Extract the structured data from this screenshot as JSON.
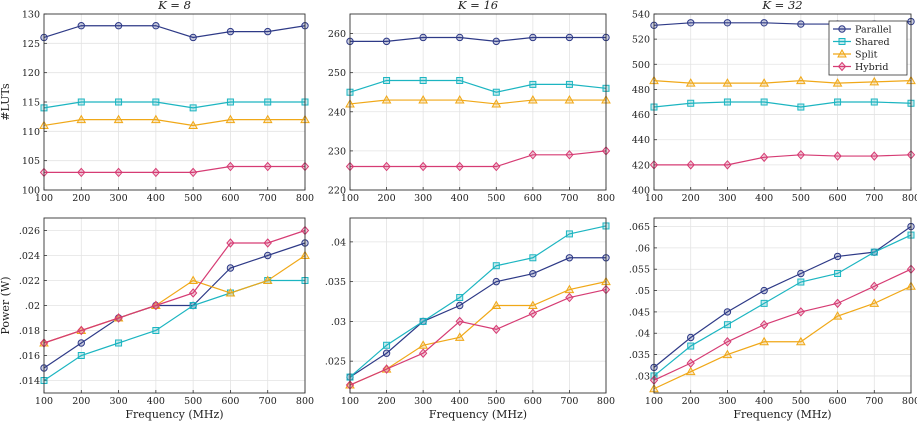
{
  "chart_data": [
    {
      "type": "line",
      "title": "K = 8",
      "xlabel": "",
      "ylabel": "#LUTs",
      "x": [
        100,
        200,
        300,
        400,
        500,
        600,
        700,
        800
      ],
      "xlim": [
        100,
        800
      ],
      "ylim": [
        100,
        130
      ],
      "yticks": [
        100,
        105,
        110,
        115,
        120,
        125,
        130
      ],
      "grid": true,
      "series": [
        {
          "name": "Parallel",
          "values": [
            126,
            128,
            128,
            128,
            126,
            127,
            127,
            128
          ]
        },
        {
          "name": "Shared",
          "values": [
            114,
            115,
            115,
            115,
            114,
            115,
            115,
            115
          ]
        },
        {
          "name": "Split",
          "values": [
            111,
            112,
            112,
            112,
            111,
            112,
            112,
            112
          ]
        },
        {
          "name": "Hybrid",
          "values": [
            103,
            103,
            103,
            103,
            103,
            104,
            104,
            104
          ]
        }
      ]
    },
    {
      "type": "line",
      "title": "K = 16",
      "xlabel": "",
      "ylabel": "",
      "x": [
        100,
        200,
        300,
        400,
        500,
        600,
        700,
        800
      ],
      "xlim": [
        100,
        800
      ],
      "ylim": [
        220,
        265
      ],
      "yticks": [
        220,
        230,
        240,
        250,
        260
      ],
      "grid": true,
      "series": [
        {
          "name": "Parallel",
          "values": [
            258,
            258,
            259,
            259,
            258,
            259,
            259,
            259
          ]
        },
        {
          "name": "Shared",
          "values": [
            245,
            248,
            248,
            248,
            245,
            247,
            247,
            246
          ]
        },
        {
          "name": "Split",
          "values": [
            242,
            243,
            243,
            243,
            242,
            243,
            243,
            243
          ]
        },
        {
          "name": "Hybrid",
          "values": [
            226,
            226,
            226,
            226,
            226,
            229,
            229,
            230
          ]
        }
      ]
    },
    {
      "type": "line",
      "title": "K = 32",
      "xlabel": "",
      "ylabel": "",
      "x": [
        100,
        200,
        300,
        400,
        500,
        600,
        700,
        800
      ],
      "xlim": [
        100,
        800
      ],
      "ylim": [
        400,
        540
      ],
      "yticks": [
        400,
        420,
        440,
        460,
        480,
        500,
        520,
        540
      ],
      "grid": true,
      "legend": "top-right",
      "series": [
        {
          "name": "Parallel",
          "values": [
            531,
            533,
            533,
            533,
            532,
            532,
            532,
            534
          ]
        },
        {
          "name": "Shared",
          "values": [
            466,
            469,
            470,
            470,
            466,
            470,
            470,
            469
          ]
        },
        {
          "name": "Split",
          "values": [
            487,
            485,
            485,
            485,
            487,
            485,
            486,
            487
          ]
        },
        {
          "name": "Hybrid",
          "values": [
            420,
            420,
            420,
            426,
            428,
            427,
            427,
            428
          ]
        }
      ]
    },
    {
      "type": "line",
      "title": "",
      "xlabel": "Frequency (MHz)",
      "ylabel": "Power (W)",
      "x": [
        100,
        200,
        300,
        400,
        500,
        600,
        700,
        800
      ],
      "xlim": [
        100,
        800
      ],
      "ylim": [
        0.013,
        0.027
      ],
      "yticks": [
        0.014,
        0.016,
        0.018,
        0.02,
        0.022,
        0.024,
        0.026
      ],
      "grid": true,
      "series": [
        {
          "name": "Parallel",
          "values": [
            0.015,
            0.017,
            0.019,
            0.02,
            0.02,
            0.023,
            0.024,
            0.025
          ]
        },
        {
          "name": "Shared",
          "values": [
            0.014,
            0.016,
            0.017,
            0.018,
            0.02,
            0.021,
            0.022,
            0.022
          ]
        },
        {
          "name": "Split",
          "values": [
            0.017,
            0.018,
            0.019,
            0.02,
            0.022,
            0.021,
            0.022,
            0.024
          ]
        },
        {
          "name": "Hybrid",
          "values": [
            0.017,
            0.018,
            0.019,
            0.02,
            0.021,
            0.025,
            0.025,
            0.026
          ]
        }
      ]
    },
    {
      "type": "line",
      "title": "",
      "xlabel": "Frequency (MHz)",
      "ylabel": "",
      "x": [
        100,
        200,
        300,
        400,
        500,
        600,
        700,
        800
      ],
      "xlim": [
        100,
        800
      ],
      "ylim": [
        0.021,
        0.043
      ],
      "yticks": [
        0.025,
        0.03,
        0.035,
        0.04
      ],
      "grid": true,
      "series": [
        {
          "name": "Parallel",
          "values": [
            0.023,
            0.026,
            0.03,
            0.032,
            0.035,
            0.036,
            0.038,
            0.038
          ]
        },
        {
          "name": "Shared",
          "values": [
            0.023,
            0.027,
            0.03,
            0.033,
            0.037,
            0.038,
            0.041,
            0.042
          ]
        },
        {
          "name": "Split",
          "values": [
            0.022,
            0.024,
            0.027,
            0.028,
            0.032,
            0.032,
            0.034,
            0.035
          ]
        },
        {
          "name": "Hybrid",
          "values": [
            0.022,
            0.024,
            0.026,
            0.03,
            0.029,
            0.031,
            0.033,
            0.034
          ]
        }
      ]
    },
    {
      "type": "line",
      "title": "",
      "xlabel": "Frequency (MHz)",
      "ylabel": "",
      "x": [
        100,
        200,
        300,
        400,
        500,
        600,
        700,
        800
      ],
      "xlim": [
        100,
        800
      ],
      "ylim": [
        0.026,
        0.067
      ],
      "yticks": [
        0.03,
        0.035,
        0.04,
        0.045,
        0.05,
        0.055,
        0.06,
        0.065
      ],
      "grid": true,
      "series": [
        {
          "name": "Parallel",
          "values": [
            0.032,
            0.039,
            0.045,
            0.05,
            0.054,
            0.058,
            0.059,
            0.065
          ]
        },
        {
          "name": "Shared",
          "values": [
            0.03,
            0.037,
            0.042,
            0.047,
            0.052,
            0.054,
            0.059,
            0.063
          ]
        },
        {
          "name": "Split",
          "values": [
            0.027,
            0.031,
            0.035,
            0.038,
            0.038,
            0.044,
            0.047,
            0.051
          ]
        },
        {
          "name": "Hybrid",
          "values": [
            0.029,
            0.033,
            0.038,
            0.042,
            0.045,
            0.047,
            0.051,
            0.055
          ]
        }
      ]
    }
  ],
  "style": {
    "colors": {
      "Parallel": "#2e3a87",
      "Shared": "#1cb5c1",
      "Split": "#f0a818",
      "Hybrid": "#d63c74"
    },
    "markers": {
      "Parallel": "circle",
      "Shared": "square",
      "Split": "triangle",
      "Hybrid": "diamond"
    }
  }
}
